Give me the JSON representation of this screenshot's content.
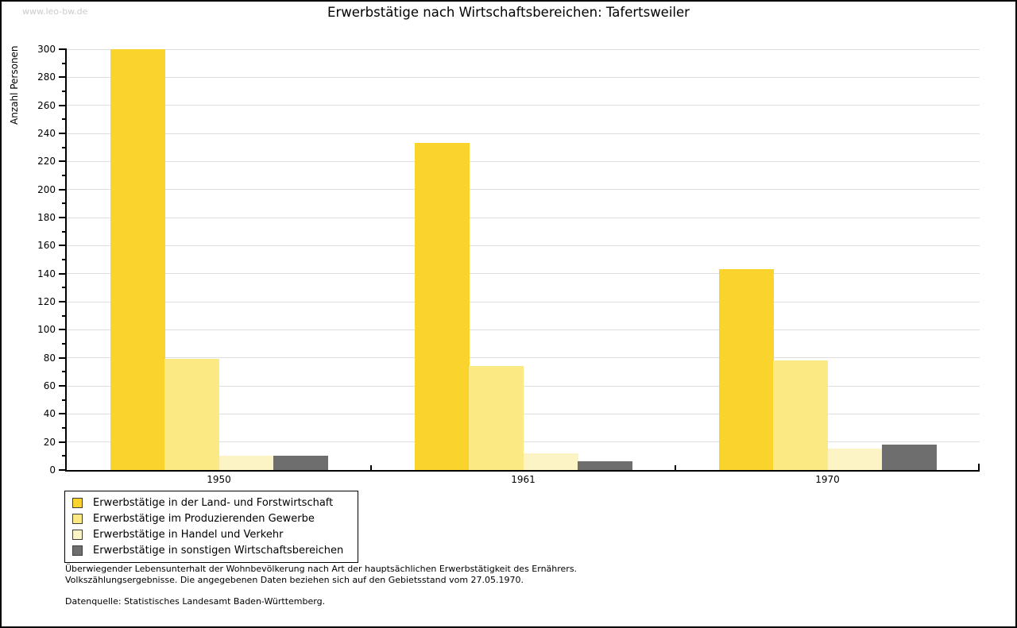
{
  "watermark": "www.leo-bw.de",
  "title": "Erwerbstätige nach Wirtschaftsbereichen: Tafertsweiler",
  "ylabel": "Anzahl Personen",
  "footnotes": [
    "Überwiegender Lebensunterhalt der Wohnbevölkerung nach Art der hauptsächlichen Erwerbstätigkeit des Ernährers.",
    "Volkszählungsergebnisse. Die angegebenen Daten beziehen sich auf den Gebietsstand vom 27.05.1970.",
    "Datenquelle: Statistisches Landesamt Baden-Württemberg."
  ],
  "colors": {
    "axis": "#000000",
    "grid": "#dedede",
    "watermark": "#cccccc",
    "legend_border": "#000000",
    "swatch_border": "#3c3c3c"
  },
  "chart_data": {
    "type": "bar",
    "title": "Erwerbstätige nach Wirtschaftsbereichen: Tafertsweiler",
    "xlabel": "",
    "ylabel": "Anzahl Personen",
    "categories": [
      "1950",
      "1961",
      "1970"
    ],
    "series": [
      {
        "name": "Erwerbstätige in der Land- und Forstwirtschaft",
        "color": "#fbd32d",
        "values": [
          300,
          233,
          143
        ]
      },
      {
        "name": "Erwerbstätige im Produzierenden Gewerbe",
        "color": "#fbe983",
        "values": [
          79,
          74,
          78
        ]
      },
      {
        "name": "Erwerbstätige in Handel und Verkehr",
        "color": "#fcf4c5",
        "values": [
          10,
          12,
          15
        ]
      },
      {
        "name": "Erwerbstätige in sonstigen Wirtschaftsbereichen",
        "color": "#6e6e6e",
        "values": [
          10,
          6,
          18
        ]
      }
    ],
    "ylim": [
      0,
      300
    ],
    "yticks": [
      0,
      20,
      40,
      60,
      80,
      100,
      120,
      140,
      160,
      180,
      200,
      220,
      240,
      260,
      280,
      300
    ],
    "yminor_step": 10,
    "grid": true,
    "legend_position": "bottom-left"
  }
}
